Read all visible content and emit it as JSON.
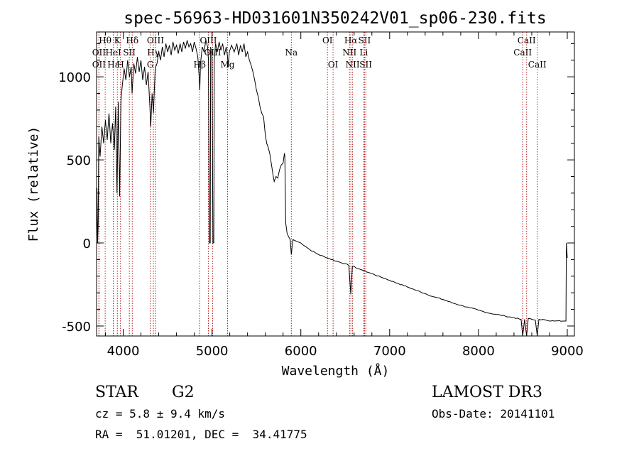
{
  "chart_data": {
    "type": "line",
    "title": "spec-56963-HD031601N350242V01_sp06-230.fits",
    "xlabel": "Wavelength (Å)",
    "ylabel": "Flux (relative)",
    "xlim": [
      3700,
      9080
    ],
    "ylim": [
      -560,
      1270
    ],
    "xticks": [
      4000,
      5000,
      6000,
      7000,
      8000,
      9000
    ],
    "yticks": [
      -500,
      0,
      500,
      1000
    ],
    "series": [
      {
        "name": "spectrum",
        "points": [
          [
            3700,
            0
          ],
          [
            3705,
            330
          ],
          [
            3712,
            0
          ],
          [
            3718,
            120
          ],
          [
            3725,
            640
          ],
          [
            3740,
            520
          ],
          [
            3760,
            700
          ],
          [
            3780,
            600
          ],
          [
            3800,
            740
          ],
          [
            3820,
            620
          ],
          [
            3840,
            780
          ],
          [
            3860,
            600
          ],
          [
            3880,
            720
          ],
          [
            3900,
            560
          ],
          [
            3915,
            820
          ],
          [
            3930,
            300
          ],
          [
            3945,
            850
          ],
          [
            3960,
            280
          ],
          [
            3975,
            860
          ],
          [
            3990,
            950
          ],
          [
            4010,
            1050
          ],
          [
            4030,
            980
          ],
          [
            4050,
            1100
          ],
          [
            4070,
            1000
          ],
          [
            4090,
            1060
          ],
          [
            4100,
            900
          ],
          [
            4120,
            1080
          ],
          [
            4140,
            1020
          ],
          [
            4160,
            1120
          ],
          [
            4180,
            1030
          ],
          [
            4200,
            1100
          ],
          [
            4220,
            980
          ],
          [
            4240,
            1060
          ],
          [
            4260,
            950
          ],
          [
            4280,
            1030
          ],
          [
            4300,
            820
          ],
          [
            4310,
            700
          ],
          [
            4325,
            900
          ],
          [
            4340,
            780
          ],
          [
            4360,
            1050
          ],
          [
            4380,
            1080
          ],
          [
            4400,
            1150
          ],
          [
            4420,
            1100
          ],
          [
            4440,
            1180
          ],
          [
            4460,
            1120
          ],
          [
            4480,
            1200
          ],
          [
            4500,
            1150
          ],
          [
            4520,
            1190
          ],
          [
            4540,
            1130
          ],
          [
            4560,
            1210
          ],
          [
            4580,
            1160
          ],
          [
            4600,
            1190
          ],
          [
            4620,
            1140
          ],
          [
            4640,
            1200
          ],
          [
            4660,
            1150
          ],
          [
            4680,
            1210
          ],
          [
            4700,
            1170
          ],
          [
            4720,
            1220
          ],
          [
            4740,
            1180
          ],
          [
            4760,
            1200
          ],
          [
            4780,
            1150
          ],
          [
            4800,
            1210
          ],
          [
            4820,
            1170
          ],
          [
            4840,
            1120
          ],
          [
            4855,
            1000
          ],
          [
            4862,
            920
          ],
          [
            4870,
            1080
          ],
          [
            4890,
            1180
          ],
          [
            4910,
            1150
          ],
          [
            4930,
            1220
          ],
          [
            4950,
            1180
          ],
          [
            4960,
            1100
          ],
          [
            4970,
            0
          ],
          [
            4980,
            0
          ],
          [
            4985,
            1180
          ],
          [
            5000,
            1120
          ],
          [
            5010,
            0
          ],
          [
            5020,
            0
          ],
          [
            5025,
            1100
          ],
          [
            5040,
            1200
          ],
          [
            5060,
            1150
          ],
          [
            5080,
            1210
          ],
          [
            5100,
            1160
          ],
          [
            5120,
            1200
          ],
          [
            5140,
            1130
          ],
          [
            5160,
            1180
          ],
          [
            5175,
            1120
          ],
          [
            5183,
            1060
          ],
          [
            5195,
            1150
          ],
          [
            5220,
            1190
          ],
          [
            5250,
            1150
          ],
          [
            5280,
            1200
          ],
          [
            5300,
            1130
          ],
          [
            5320,
            1190
          ],
          [
            5340,
            1150
          ],
          [
            5360,
            1200
          ],
          [
            5380,
            1120
          ],
          [
            5400,
            1150
          ],
          [
            5420,
            1100
          ],
          [
            5440,
            1070
          ],
          [
            5460,
            1030
          ],
          [
            5480,
            980
          ],
          [
            5500,
            920
          ],
          [
            5520,
            880
          ],
          [
            5540,
            820
          ],
          [
            5560,
            780
          ],
          [
            5580,
            760
          ],
          [
            5600,
            650
          ],
          [
            5615,
            600
          ],
          [
            5630,
            580
          ],
          [
            5650,
            540
          ],
          [
            5670,
            470
          ],
          [
            5690,
            400
          ],
          [
            5700,
            370
          ],
          [
            5720,
            400
          ],
          [
            5740,
            390
          ],
          [
            5760,
            440
          ],
          [
            5780,
            470
          ],
          [
            5800,
            480
          ],
          [
            5815,
            540
          ],
          [
            5820,
            520
          ],
          [
            5830,
            120
          ],
          [
            5845,
            60
          ],
          [
            5860,
            40
          ],
          [
            5880,
            20
          ],
          [
            5893,
            -70
          ],
          [
            5910,
            20
          ],
          [
            5950,
            10
          ],
          [
            6000,
            0
          ],
          [
            6100,
            -40
          ],
          [
            6200,
            -70
          ],
          [
            6300,
            -90
          ],
          [
            6400,
            -110
          ],
          [
            6500,
            -125
          ],
          [
            6540,
            -135
          ],
          [
            6563,
            -310
          ],
          [
            6580,
            -140
          ],
          [
            6650,
            -155
          ],
          [
            6700,
            -165
          ],
          [
            6800,
            -185
          ],
          [
            6900,
            -205
          ],
          [
            7000,
            -225
          ],
          [
            7100,
            -245
          ],
          [
            7200,
            -265
          ],
          [
            7300,
            -285
          ],
          [
            7400,
            -305
          ],
          [
            7500,
            -325
          ],
          [
            7600,
            -340
          ],
          [
            7700,
            -360
          ],
          [
            7800,
            -375
          ],
          [
            7900,
            -390
          ],
          [
            8000,
            -405
          ],
          [
            8100,
            -420
          ],
          [
            8200,
            -430
          ],
          [
            8300,
            -440
          ],
          [
            8400,
            -450
          ],
          [
            8480,
            -460
          ],
          [
            8498,
            -560
          ],
          [
            8520,
            -460
          ],
          [
            8542,
            -560
          ],
          [
            8560,
            -455
          ],
          [
            8640,
            -465
          ],
          [
            8662,
            -560
          ],
          [
            8680,
            -460
          ],
          [
            8760,
            -465
          ],
          [
            8850,
            -470
          ],
          [
            8950,
            -470
          ],
          [
            8985,
            -470
          ],
          [
            8990,
            0
          ],
          [
            9000,
            -90
          ]
        ]
      }
    ],
    "line_markers": [
      {
        "label": "Hθ",
        "x": 3797,
        "row": 1
      },
      {
        "label": "OII",
        "x": 3727,
        "row": 2
      },
      {
        "label": "OII",
        "x": 3727,
        "row": 3
      },
      {
        "label": "K",
        "x": 3934,
        "row": 1
      },
      {
        "label": "HeI",
        "x": 3889,
        "row": 2
      },
      {
        "label": "Hε",
        "x": 3889,
        "row": 3
      },
      {
        "label": "Hδ",
        "x": 4102,
        "row": 1
      },
      {
        "label": "SII",
        "x": 4069,
        "row": 2
      },
      {
        "label": "H",
        "x": 3969,
        "row": 3
      },
      {
        "label": "OIII",
        "x": 4363,
        "row": 1
      },
      {
        "label": "Hγ",
        "x": 4340,
        "row": 2
      },
      {
        "label": "G",
        "x": 4305,
        "row": 3
      },
      {
        "label": "OIII",
        "x": 4959,
        "row": 1
      },
      {
        "label": "OIII",
        "x": 5007,
        "row": 2
      },
      {
        "label": "Hβ",
        "x": 4861,
        "row": 3
      },
      {
        "label": "Mg",
        "x": 5175,
        "row": 3
      },
      {
        "label": "Na",
        "x": 5893,
        "row": 2
      },
      {
        "label": "OI",
        "x": 6300,
        "row": 1
      },
      {
        "label": "OI",
        "x": 6363,
        "row": 3
      },
      {
        "label": "Hα",
        "x": 6563,
        "row": 1
      },
      {
        "label": "NII",
        "x": 6548,
        "row": 2
      },
      {
        "label": "NII",
        "x": 6583,
        "row": 3
      },
      {
        "label": "SII",
        "x": 6717,
        "row": 1
      },
      {
        "label": "Li",
        "x": 6708,
        "row": 2
      },
      {
        "label": "SII",
        "x": 6731,
        "row": 3
      },
      {
        "label": "CaII",
        "x": 8542,
        "row": 1
      },
      {
        "label": "CaII",
        "x": 8498,
        "row": 2
      },
      {
        "label": "CaII",
        "x": 8662,
        "row": 3
      }
    ],
    "marker_color": "#b02020"
  },
  "info": {
    "object_class": "STAR",
    "subclass": "G2",
    "redshift": "cz = 5.8 ± 9.4 km/s",
    "coords": "RA =  51.01201, DEC =  34.41775",
    "survey": "LAMOST DR3",
    "obs_date": "Obs-Date: 20141101"
  }
}
